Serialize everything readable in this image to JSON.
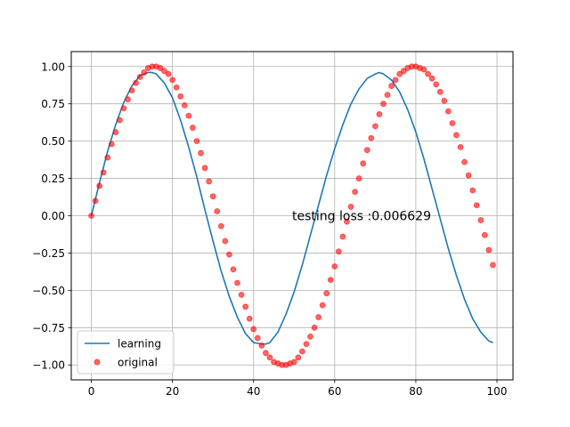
{
  "chart_data": {
    "type": "line",
    "title": "",
    "xlabel": "",
    "ylabel": "",
    "xlim": [
      -4.95,
      103.95
    ],
    "ylim": [
      -1.1,
      1.1
    ],
    "grid": true,
    "legend_position": "lower-left",
    "x_ticks": [
      0,
      20,
      40,
      60,
      80,
      100
    ],
    "y_ticks": [
      -1.0,
      -0.75,
      -0.5,
      -0.25,
      0.0,
      0.25,
      0.5,
      0.75,
      1.0
    ],
    "x_tick_labels": [
      "0",
      "20",
      "40",
      "60",
      "80",
      "100"
    ],
    "y_tick_labels": [
      "−1.00",
      "−0.75",
      "−0.50",
      "−0.25",
      "0.00",
      "0.25",
      "0.50",
      "0.75",
      "1.00"
    ],
    "annotation": {
      "text": "testing loss :0.006629",
      "x": 49.5,
      "y": 0.0
    },
    "series": [
      {
        "name": "learning",
        "kind": "line",
        "color": "#1f77b4",
        "x": [
          0,
          2,
          4,
          6,
          8,
          10,
          12,
          14,
          15,
          16,
          18,
          20,
          22,
          24,
          26,
          28,
          30,
          32,
          34,
          36,
          38,
          40,
          42,
          43,
          44,
          46,
          48,
          50,
          52,
          54,
          56,
          58,
          60,
          62,
          64,
          66,
          68,
          70,
          71,
          72,
          74,
          76,
          78,
          80,
          82,
          84,
          86,
          88,
          90,
          92,
          94,
          96,
          98,
          99
        ],
        "y": [
          0.0,
          0.22,
          0.43,
          0.61,
          0.76,
          0.87,
          0.94,
          0.96,
          0.96,
          0.95,
          0.89,
          0.79,
          0.64,
          0.46,
          0.26,
          0.04,
          -0.17,
          -0.37,
          -0.54,
          -0.68,
          -0.79,
          -0.85,
          -0.86,
          -0.86,
          -0.85,
          -0.78,
          -0.66,
          -0.51,
          -0.33,
          -0.13,
          0.07,
          0.27,
          0.45,
          0.61,
          0.75,
          0.85,
          0.92,
          0.95,
          0.96,
          0.95,
          0.91,
          0.83,
          0.71,
          0.56,
          0.38,
          0.18,
          -0.02,
          -0.22,
          -0.4,
          -0.56,
          -0.69,
          -0.78,
          -0.84,
          -0.85
        ]
      },
      {
        "name": "original",
        "kind": "scatter",
        "color": "#ff0000",
        "x": [
          0,
          1,
          2,
          3,
          4,
          5,
          6,
          7,
          8,
          9,
          10,
          11,
          12,
          13,
          14,
          15,
          16,
          17,
          18,
          19,
          20,
          21,
          22,
          23,
          24,
          25,
          26,
          27,
          28,
          29,
          30,
          31,
          32,
          33,
          34,
          35,
          36,
          37,
          38,
          39,
          40,
          41,
          42,
          43,
          44,
          45,
          46,
          47,
          48,
          49,
          50,
          51,
          52,
          53,
          54,
          55,
          56,
          57,
          58,
          59,
          60,
          61,
          62,
          63,
          64,
          65,
          66,
          67,
          68,
          69,
          70,
          71,
          72,
          73,
          74,
          75,
          76,
          77,
          78,
          79,
          80,
          81,
          82,
          83,
          84,
          85,
          86,
          87,
          88,
          89,
          90,
          91,
          92,
          93,
          94,
          95,
          96,
          97,
          98,
          99
        ],
        "y": [
          0.0,
          0.1,
          0.2,
          0.29,
          0.39,
          0.48,
          0.56,
          0.64,
          0.72,
          0.78,
          0.84,
          0.89,
          0.93,
          0.96,
          0.99,
          1.0,
          1.0,
          0.99,
          0.97,
          0.95,
          0.91,
          0.86,
          0.8,
          0.74,
          0.67,
          0.59,
          0.5,
          0.42,
          0.32,
          0.23,
          0.13,
          0.03,
          -0.07,
          -0.17,
          -0.26,
          -0.36,
          -0.45,
          -0.53,
          -0.61,
          -0.69,
          -0.76,
          -0.82,
          -0.87,
          -0.92,
          -0.95,
          -0.98,
          -0.99,
          -1.0,
          -1.0,
          -0.99,
          -0.98,
          -0.95,
          -0.91,
          -0.86,
          -0.81,
          -0.75,
          -0.68,
          -0.6,
          -0.52,
          -0.43,
          -0.34,
          -0.24,
          -0.14,
          -0.04,
          0.06,
          0.16,
          0.25,
          0.35,
          0.44,
          0.52,
          0.6,
          0.68,
          0.75,
          0.81,
          0.87,
          0.91,
          0.95,
          0.97,
          0.99,
          1.0,
          1.0,
          0.99,
          0.98,
          0.95,
          0.92,
          0.88,
          0.83,
          0.77,
          0.7,
          0.62,
          0.54,
          0.46,
          0.36,
          0.27,
          0.17,
          0.07,
          -0.03,
          -0.13,
          -0.23,
          -0.33
        ],
        "y_tail_note": ""
      }
    ]
  }
}
